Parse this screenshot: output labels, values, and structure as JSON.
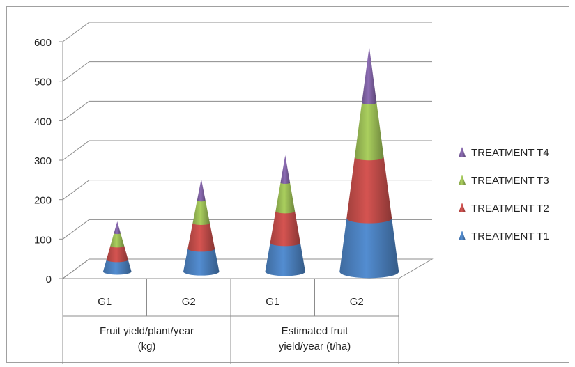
{
  "chart_data": {
    "type": "bar",
    "subtype": "3d-cone-stacked",
    "categories": [
      {
        "group": "Fruit yield/plant/year (kg)",
        "group_lines": [
          "Fruit yield/plant/year",
          "(kg)"
        ],
        "label": "G1"
      },
      {
        "group": "Fruit yield/plant/year (kg)",
        "group_lines": [
          "Fruit yield/plant/year",
          "(kg)"
        ],
        "label": "G2"
      },
      {
        "group": "Estimated fruit yield/year (t/ha)",
        "group_lines": [
          "Estimated fruit",
          "yield/year (t/ha)"
        ],
        "label": "G1"
      },
      {
        "group": "Estimated fruit yield/year (t/ha)",
        "group_lines": [
          "Estimated fruit",
          "yield/year (t/ha)"
        ],
        "label": "G2"
      }
    ],
    "series": [
      {
        "name": "TREATMENT T1",
        "color": "#4a7ebb",
        "values": [
          30,
          58,
          73,
          135
        ]
      },
      {
        "name": "TREATMENT T2",
        "color": "#be4b48",
        "values": [
          35,
          65,
          80,
          155
        ]
      },
      {
        "name": "TREATMENT T3",
        "color": "#98b954",
        "values": [
          32,
          57,
          72,
          138
        ]
      },
      {
        "name": "TREATMENT T4",
        "color": "#7d60a0",
        "values": [
          30,
          55,
          70,
          142
        ]
      }
    ],
    "yticks": [
      0,
      100,
      200,
      300,
      400,
      500,
      600
    ],
    "ylim": [
      0,
      600
    ],
    "grid": true,
    "legend": "right",
    "title": "",
    "xlabel": "",
    "ylabel": ""
  }
}
